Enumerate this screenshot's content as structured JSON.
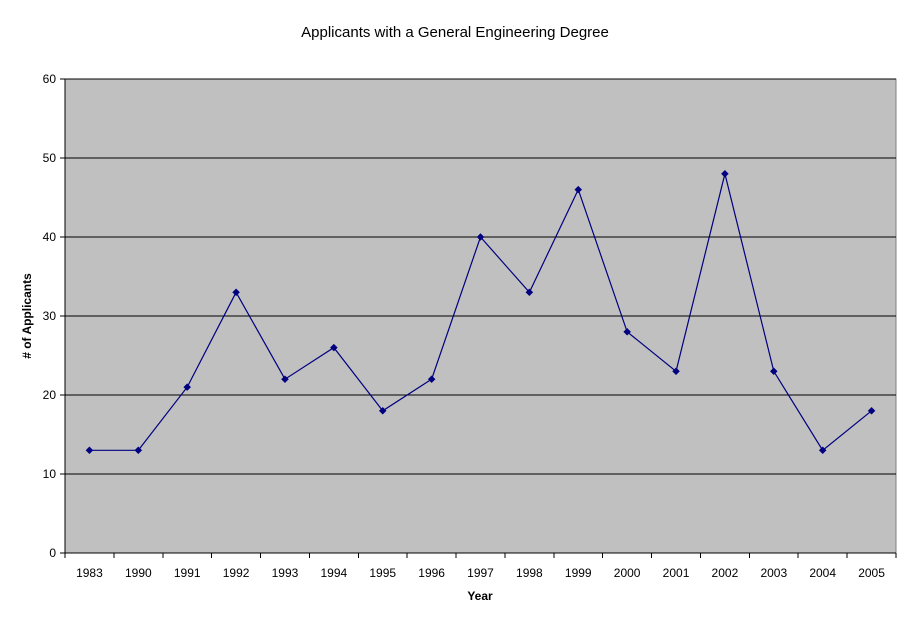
{
  "chart_data": {
    "type": "line",
    "title": "Applicants with a General Engineering Degree",
    "xlabel": "Year",
    "ylabel": "# of Applicants",
    "categories": [
      "1983",
      "1990",
      "1991",
      "1992",
      "1993",
      "1994",
      "1995",
      "1996",
      "1997",
      "1998",
      "1999",
      "2000",
      "2001",
      "2002",
      "2003",
      "2004",
      "2005"
    ],
    "series": [
      {
        "values": [
          13,
          13,
          21,
          33,
          22,
          26,
          18,
          22,
          40,
          33,
          46,
          28,
          23,
          48,
          23,
          13,
          18
        ]
      }
    ],
    "ylim": [
      0,
      60
    ],
    "yticks": [
      0,
      10,
      20,
      30,
      40,
      50,
      60
    ],
    "grid": "horizontal",
    "legend": "none",
    "colors": {
      "plot_background": "#c0c0c0",
      "line": "#000080",
      "marker": "#000080",
      "gridline": "#000000"
    }
  }
}
